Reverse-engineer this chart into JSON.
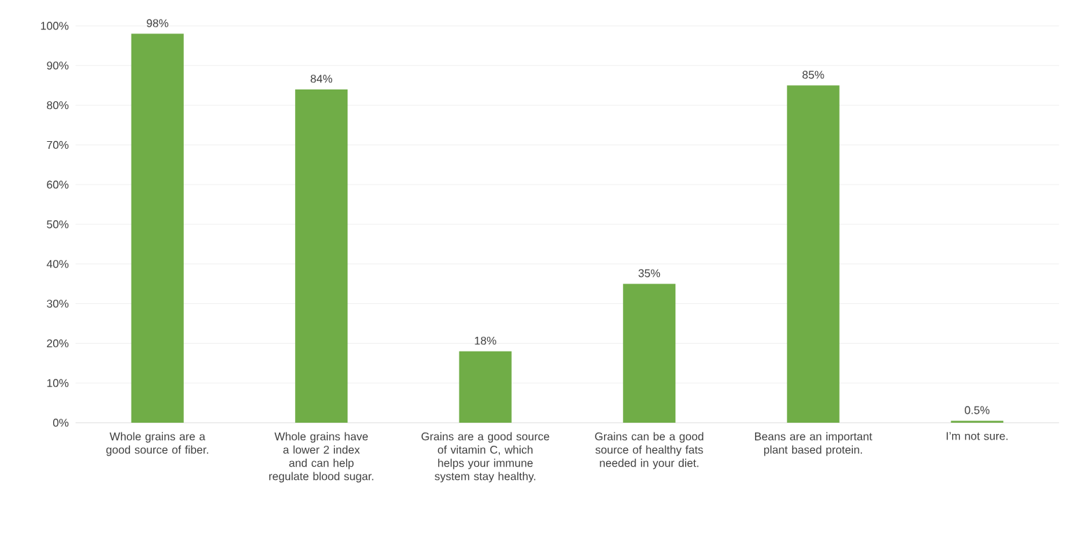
{
  "chart_data": {
    "type": "bar",
    "categories": [
      "Whole grains are a good source of fiber.",
      "Whole grains have a lower 2 index and can help regulate blood sugar.",
      "Grains are a good source of vitamin C, which helps your immune system stay healthy.",
      "Grains can be a good source of healthy fats needed in your diet.",
      "Beans are an important plant based protein.",
      "I’m not sure."
    ],
    "values": [
      98,
      84,
      18,
      35,
      85,
      0.5
    ],
    "value_labels": [
      "98%",
      "84%",
      "18%",
      "35%",
      "85%",
      "0.5%"
    ],
    "color": "#70ad47",
    "ylim": [
      0,
      100
    ],
    "yticks": [
      {
        "value": 0,
        "label": "0%"
      },
      {
        "value": 10,
        "label": "10%"
      },
      {
        "value": 20,
        "label": "20%"
      },
      {
        "value": 30,
        "label": "30%"
      },
      {
        "value": 40,
        "label": "40%"
      },
      {
        "value": 50,
        "label": "50%"
      },
      {
        "value": 60,
        "label": "60%"
      },
      {
        "value": 70,
        "label": "70%"
      },
      {
        "value": 80,
        "label": "80%"
      },
      {
        "value": 90,
        "label": "90%"
      },
      {
        "value": 100,
        "label": "100%"
      }
    ],
    "grid": "y"
  }
}
